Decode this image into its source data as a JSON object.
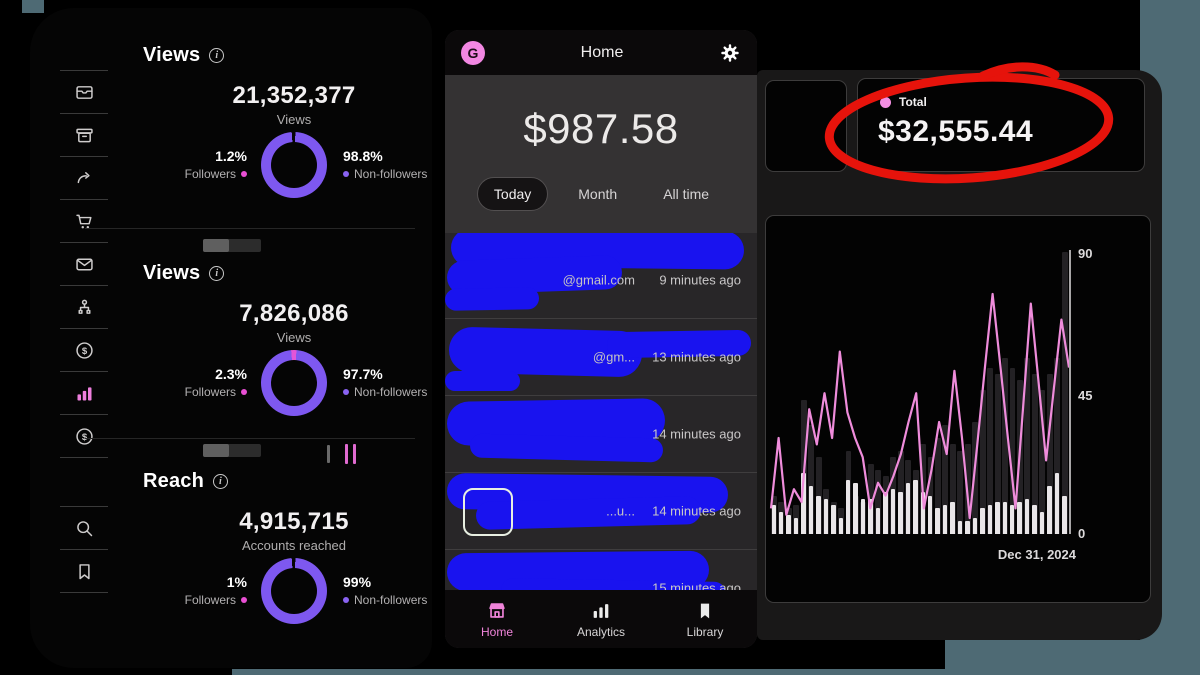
{
  "colors": {
    "donut_purple": "#7e58f0",
    "donut_pink": "#e455d8",
    "accent_pink": "#ee7fdd",
    "scribble_blue": "#1913ef",
    "annotation_red": "#e6130b",
    "desktop_teal": "#4e6a74"
  },
  "insights": {
    "sidebar_icons": [
      "inbox-icon",
      "archive-icon",
      "hand-share-icon",
      "cart-icon",
      "mail-icon",
      "network-icon",
      "dollar-icon",
      "chart-bars-icon",
      "dollar-icon",
      "search-icon",
      "bookmark-icon"
    ],
    "panels": [
      {
        "title": "Views",
        "value": "21,352,377",
        "sublabel": "Views",
        "left_pct": "1.2%",
        "left_label": "Followers",
        "right_pct": "98.8%",
        "right_label": "Non-followers"
      },
      {
        "title": "Views",
        "value": "7,826,086",
        "sublabel": "Views",
        "left_pct": "2.3%",
        "left_label": "Followers",
        "right_pct": "97.7%",
        "right_label": "Non-followers"
      },
      {
        "title": "Reach",
        "value": "4,915,715",
        "sublabel": "Accounts reached",
        "left_pct": "1%",
        "left_label": "Followers",
        "right_pct": "99%",
        "right_label": "Non-followers"
      }
    ]
  },
  "phone": {
    "header": {
      "logo_letter": "G",
      "title": "Home",
      "gear_icon": "gear-icon"
    },
    "balance": "$987.58",
    "tabs": [
      {
        "label": "Today",
        "active": true
      },
      {
        "label": "Month",
        "active": false
      },
      {
        "label": "All time",
        "active": false
      }
    ],
    "transactions": [
      {
        "fragment": "@gmail.com",
        "time": "9 minutes ago"
      },
      {
        "fragment": "@gm...",
        "time": "13 minutes ago"
      },
      {
        "fragment": "",
        "time": "14 minutes ago"
      },
      {
        "fragment": "...u...",
        "time": "14 minutes ago"
      },
      {
        "fragment": "",
        "time": "15 minutes ago"
      }
    ],
    "nav": [
      {
        "label": "Home",
        "icon": "storefront-icon",
        "active": true
      },
      {
        "label": "Analytics",
        "icon": "bar-chart-icon",
        "active": false
      },
      {
        "label": "Library",
        "icon": "bookmark-icon",
        "active": false
      }
    ]
  },
  "dashboard": {
    "total_card": {
      "label": "Total",
      "value": "$32,555.44"
    }
  },
  "chart_data": {
    "type": "combo",
    "title": "",
    "xlabel": "",
    "ylabel": "",
    "ylim": [
      0,
      90
    ],
    "yticks": [
      "90",
      "45",
      "0"
    ],
    "x_end_label": "Dec 31, 2024",
    "grid": false,
    "legend": false,
    "series": [
      {
        "name": "background-bars",
        "type": "bar",
        "color": "#232124",
        "values": [
          12,
          10,
          8,
          9,
          42,
          34,
          24,
          14,
          10,
          8,
          26,
          12,
          10,
          22,
          20,
          18,
          24,
          26,
          23,
          20,
          28,
          24,
          30,
          34,
          28,
          26,
          28,
          35,
          45,
          52,
          50,
          55,
          52,
          48,
          55,
          50,
          45,
          50,
          55,
          88
        ]
      },
      {
        "name": "foreground-bars",
        "type": "bar",
        "color": "#e9e6e8",
        "values": [
          9,
          7,
          6,
          5,
          19,
          15,
          12,
          11,
          9,
          5,
          17,
          16,
          11,
          11,
          8,
          13,
          14,
          13,
          16,
          17,
          13,
          12,
          8,
          9,
          10,
          4,
          4,
          5,
          8,
          9,
          10,
          10,
          9,
          10,
          11,
          9,
          7,
          15,
          19,
          12
        ]
      },
      {
        "name": "trend-line",
        "type": "line",
        "color": "#ef8cdb",
        "values": [
          8,
          30,
          6,
          14,
          10,
          39,
          28,
          44,
          30,
          57,
          38,
          30,
          24,
          8,
          16,
          12,
          18,
          25,
          35,
          44,
          8,
          20,
          35,
          25,
          51,
          30,
          5,
          28,
          52,
          75,
          53,
          30,
          8,
          40,
          72,
          48,
          23,
          45,
          67,
          52
        ]
      }
    ]
  }
}
